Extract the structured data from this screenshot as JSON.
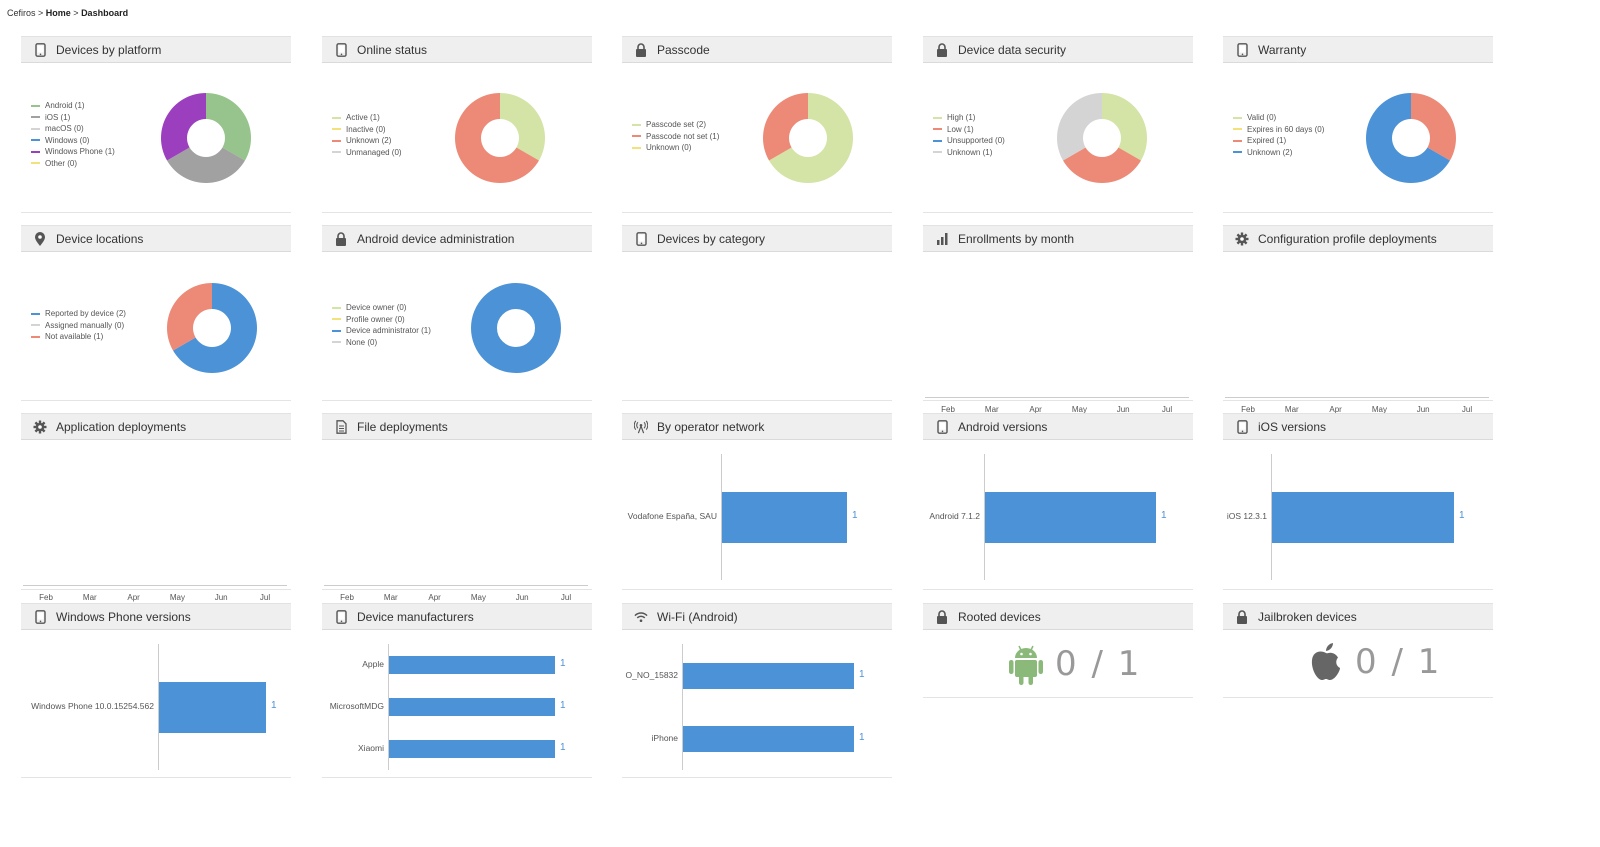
{
  "breadcrumb": {
    "root": "Cefiros",
    "sep1": " > ",
    "home": "Home",
    "sep2": " > ",
    "current": "Dashboard"
  },
  "colors": {
    "green": "#97c38c",
    "gray": "#a1a1a1",
    "lightgray": "#d4d4d4",
    "blue": "#4c92d6",
    "purple": "#9b3fbf",
    "yellow": "#f3e27a",
    "red": "#ec8a77",
    "lightgreen": "#d4e3a6",
    "bar": "#4c92d6"
  },
  "months": [
    "Feb",
    "Mar",
    "Apr",
    "May",
    "Jun",
    "Jul"
  ],
  "panels": {
    "devices_by_platform": {
      "title": "Devices by platform",
      "icon": "phone-icon",
      "legend": [
        {
          "label": "Android (1)",
          "color": "#97c38c"
        },
        {
          "label": "iOS (1)",
          "color": "#a1a1a1"
        },
        {
          "label": "macOS (0)",
          "color": "#d4d4d4"
        },
        {
          "label": "Windows (0)",
          "color": "#4c92d6"
        },
        {
          "label": "Windows Phone (1)",
          "color": "#9b3fbf"
        },
        {
          "label": "Other (0)",
          "color": "#f3e27a"
        }
      ],
      "slices": [
        {
          "value": 1,
          "color": "#97c38c"
        },
        {
          "value": 1,
          "color": "#a1a1a1"
        },
        {
          "value": 1,
          "color": "#9b3fbf"
        }
      ]
    },
    "online_status": {
      "title": "Online status",
      "icon": "phone-icon",
      "legend": [
        {
          "label": "Active (1)",
          "color": "#d4e3a6"
        },
        {
          "label": "Inactive (0)",
          "color": "#f3e27a"
        },
        {
          "label": "Unknown (2)",
          "color": "#ec8a77"
        },
        {
          "label": "Unmanaged (0)",
          "color": "#d4d4d4"
        }
      ],
      "slices": [
        {
          "value": 1,
          "color": "#d4e3a6"
        },
        {
          "value": 2,
          "color": "#ec8a77"
        }
      ]
    },
    "passcode": {
      "title": "Passcode",
      "icon": "lock-icon",
      "legend": [
        {
          "label": "Passcode set (2)",
          "color": "#d4e3a6"
        },
        {
          "label": "Passcode not set (1)",
          "color": "#ec8a77"
        },
        {
          "label": "Unknown (0)",
          "color": "#f3e27a"
        }
      ],
      "slices": [
        {
          "value": 2,
          "color": "#d4e3a6"
        },
        {
          "value": 1,
          "color": "#ec8a77"
        }
      ]
    },
    "device_data_security": {
      "title": "Device data security",
      "icon": "lock-icon",
      "legend": [
        {
          "label": "High (1)",
          "color": "#d4e3a6"
        },
        {
          "label": "Low (1)",
          "color": "#ec8a77"
        },
        {
          "label": "Unsupported (0)",
          "color": "#4c92d6"
        },
        {
          "label": "Unknown (1)",
          "color": "#d4d4d4"
        }
      ],
      "slices": [
        {
          "value": 1,
          "color": "#d4e3a6"
        },
        {
          "value": 1,
          "color": "#ec8a77"
        },
        {
          "value": 1,
          "color": "#d4d4d4"
        }
      ]
    },
    "warranty": {
      "title": "Warranty",
      "icon": "phone-icon",
      "legend": [
        {
          "label": "Valid (0)",
          "color": "#d4e3a6"
        },
        {
          "label": "Expires in 60 days (0)",
          "color": "#f3e27a"
        },
        {
          "label": "Expired (1)",
          "color": "#ec8a77"
        },
        {
          "label": "Unknown (2)",
          "color": "#4c92d6"
        }
      ],
      "slices": [
        {
          "value": 1,
          "color": "#ec8a77"
        },
        {
          "value": 2,
          "color": "#4c92d6"
        }
      ]
    },
    "device_locations": {
      "title": "Device locations",
      "icon": "pin-icon",
      "legend": [
        {
          "label": "Reported by device (2)",
          "color": "#4c92d6"
        },
        {
          "label": "Assigned manually (0)",
          "color": "#d4d4d4"
        },
        {
          "label": "Not available (1)",
          "color": "#ec8a77"
        }
      ],
      "slices": [
        {
          "value": 2,
          "color": "#4c92d6"
        },
        {
          "value": 1,
          "color": "#ec8a77"
        }
      ]
    },
    "android_device_admin": {
      "title": "Android device administration",
      "icon": "lock-icon",
      "legend": [
        {
          "label": "Device owner (0)",
          "color": "#d4e3a6"
        },
        {
          "label": "Profile owner (0)",
          "color": "#f3e27a"
        },
        {
          "label": "Device administrator (1)",
          "color": "#4c92d6"
        },
        {
          "label": "None (0)",
          "color": "#d4d4d4"
        }
      ],
      "slices": [
        {
          "value": 1,
          "color": "#4c92d6"
        }
      ]
    },
    "devices_by_category": {
      "title": "Devices by category",
      "icon": "phone-icon"
    },
    "enrollments_by_month": {
      "title": "Enrollments by month",
      "icon": "bar-chart-icon"
    },
    "config_profile_deployments": {
      "title": "Configuration profile deployments",
      "icon": "gear-icon"
    },
    "application_deployments": {
      "title": "Application deployments",
      "icon": "gear-icon"
    },
    "file_deployments": {
      "title": "File deployments",
      "icon": "file-icon"
    },
    "by_operator_network": {
      "title": "By operator network",
      "icon": "antenna-icon",
      "bars": [
        {
          "label": "Vodafone España, SAU",
          "value": 1
        }
      ]
    },
    "android_versions": {
      "title": "Android versions",
      "icon": "phone-icon",
      "bars": [
        {
          "label": "Android 7.1.2",
          "value": 1
        }
      ]
    },
    "ios_versions": {
      "title": "iOS versions",
      "icon": "phone-icon",
      "bars": [
        {
          "label": "iOS 12.3.1",
          "value": 1
        }
      ]
    },
    "windows_phone_versions": {
      "title": "Windows Phone versions",
      "icon": "phone-icon",
      "bars": [
        {
          "label": "Windows Phone 10.0.15254.562",
          "value": 1
        }
      ]
    },
    "device_manufacturers": {
      "title": "Device manufacturers",
      "icon": "phone-icon",
      "bars": [
        {
          "label": "Apple",
          "value": 1
        },
        {
          "label": "MicrosoftMDG",
          "value": 1
        },
        {
          "label": "Xiaomi",
          "value": 1
        }
      ]
    },
    "wifi_android": {
      "title": "Wi-Fi (Android)",
      "icon": "wifi-icon",
      "bars": [
        {
          "label": "O_NO_15832",
          "value": 1
        },
        {
          "label": "iPhone",
          "value": 1
        }
      ]
    },
    "rooted_devices": {
      "title": "Rooted devices",
      "icon": "lock-icon",
      "stat": "0 / 1",
      "stat_icon": "android-icon"
    },
    "jailbroken_devices": {
      "title": "Jailbroken devices",
      "icon": "lock-icon",
      "stat": "0 / 1",
      "stat_icon": "apple-icon"
    }
  }
}
